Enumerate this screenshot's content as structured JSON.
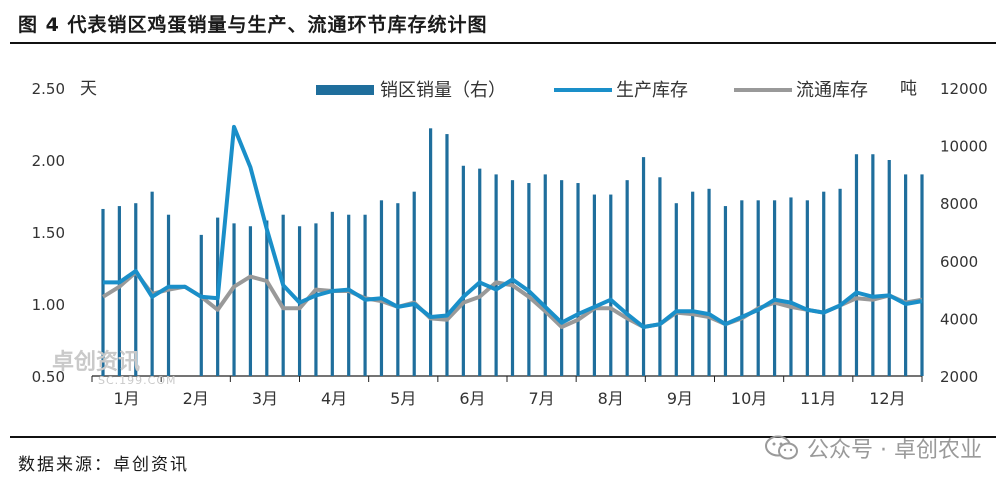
{
  "header": {
    "title": "图 4 代表销区鸡蛋销量与生产、流通环节库存统计图"
  },
  "footer": {
    "source": "数据来源：卓创资讯",
    "watermark": "公众号 · 卓创农业"
  },
  "watermark_chart": {
    "brand": "卓创资讯",
    "site": "SC.199.COM"
  },
  "chart_data": {
    "type": "bar+line",
    "title": "",
    "ylabel_left": "天",
    "ylabel_right": "吨",
    "ylim_left": [
      0.5,
      2.5
    ],
    "ylim_right": [
      2000,
      12000
    ],
    "yticks_left": [
      "0.50",
      "1.00",
      "1.50",
      "2.00",
      "2.50"
    ],
    "yticks_right": [
      "2000",
      "4000",
      "6000",
      "8000",
      "10000",
      "12000"
    ],
    "x_labels": [
      "1月",
      "2月",
      "3月",
      "4月",
      "5月",
      "6月",
      "7月",
      "8月",
      "9月",
      "10月",
      "11月",
      "12月"
    ],
    "legend_position": "top",
    "colors": {
      "bar": "#1f6e9c",
      "production": "#1a8fc9",
      "circulation": "#999999"
    },
    "series": [
      {
        "name": "销区销量（右）",
        "type": "bar",
        "axis": "right",
        "values": [
          7800,
          7900,
          8000,
          8400,
          7600,
          1400,
          6900,
          7500,
          7300,
          7200,
          7400,
          7600,
          7200,
          7300,
          7700,
          7600,
          7600,
          8100,
          8000,
          8400,
          10600,
          10400,
          9300,
          9200,
          9000,
          8800,
          8700,
          9000,
          8800,
          8700,
          8300,
          8300,
          8800,
          9600,
          8900,
          8000,
          8400,
          8500,
          7900,
          8100,
          8100,
          8100,
          8200,
          8100,
          8400,
          8500,
          9700,
          9700,
          9500,
          9000,
          9000
        ]
      },
      {
        "name": "生产库存",
        "type": "line",
        "axis": "left",
        "values": [
          1.15,
          1.15,
          1.23,
          1.05,
          1.12,
          1.12,
          1.05,
          1.04,
          2.23,
          1.95,
          1.52,
          1.13,
          1.01,
          1.06,
          1.09,
          1.1,
          1.03,
          1.04,
          0.98,
          1.0,
          0.91,
          0.92,
          1.05,
          1.15,
          1.1,
          1.17,
          1.09,
          0.98,
          0.87,
          0.93,
          0.98,
          1.03,
          0.93,
          0.84,
          0.86,
          0.95,
          0.95,
          0.93,
          0.86,
          0.91,
          0.96,
          1.03,
          1.01,
          0.96,
          0.94,
          0.99,
          1.08,
          1.05,
          1.06,
          1.0,
          1.02
        ]
      },
      {
        "name": "流通库存",
        "type": "line",
        "axis": "left",
        "values": [
          1.05,
          1.12,
          1.22,
          1.07,
          1.1,
          1.12,
          1.05,
          0.96,
          1.12,
          1.19,
          1.16,
          0.97,
          0.97,
          1.1,
          1.09,
          1.09,
          1.04,
          1.02,
          0.98,
          1.01,
          0.9,
          0.89,
          1.01,
          1.05,
          1.15,
          1.13,
          1.05,
          0.95,
          0.84,
          0.89,
          0.97,
          0.97,
          0.9,
          0.84,
          0.86,
          0.94,
          0.93,
          0.91,
          0.86,
          0.9,
          0.97,
          1.01,
          0.98,
          0.96,
          0.94,
          0.99,
          1.04,
          1.03,
          1.06,
          1.01,
          1.03
        ]
      }
    ]
  }
}
